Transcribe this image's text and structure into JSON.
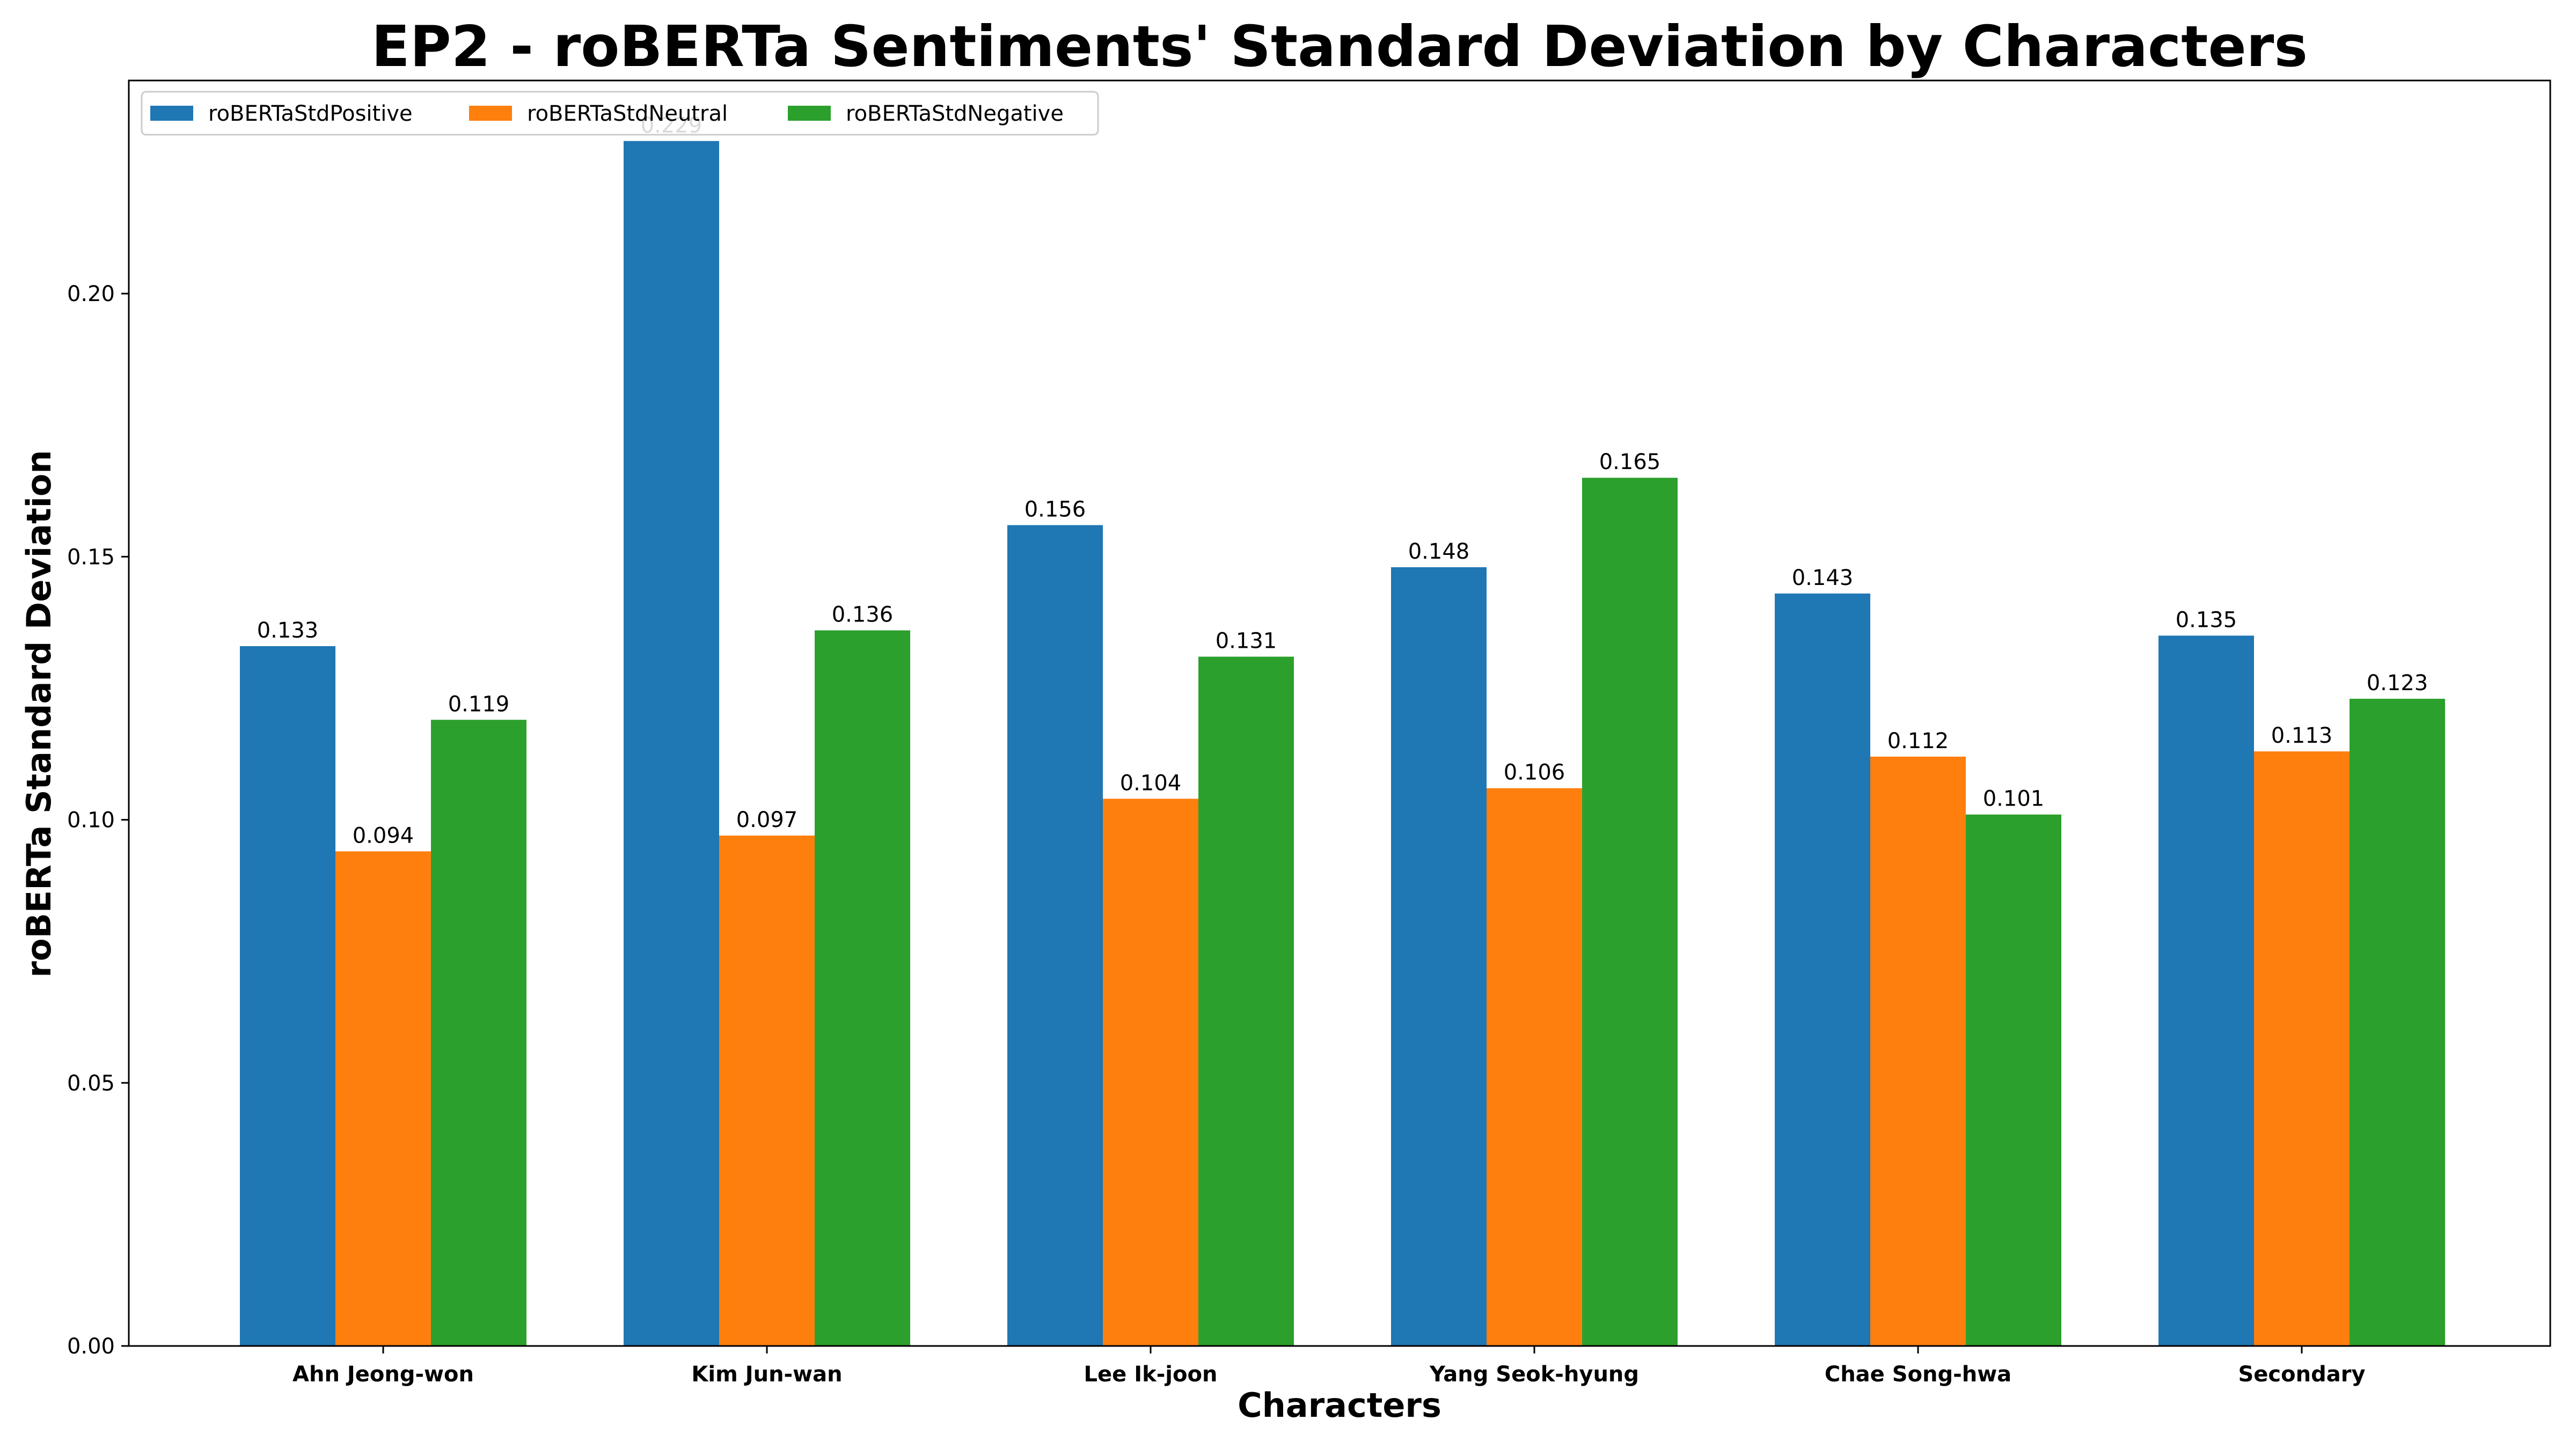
{
  "chart_data": {
    "type": "bar",
    "title": "EP2 - roBERTa Sentiments' Standard Deviation by Characters",
    "xlabel": "Characters",
    "ylabel": "roBERTa Standard Deviation",
    "categories": [
      "Ahn Jeong-won",
      "Kim Jun-wan",
      "Lee Ik-joon",
      "Yang Seok-hyung",
      "Chae Song-hwa",
      "Secondary"
    ],
    "series": [
      {
        "name": "roBERTaStdPositive",
        "color": "#1f77b4",
        "values": [
          0.133,
          0.229,
          0.156,
          0.148,
          0.143,
          0.135
        ],
        "labels": [
          "0.133",
          "0.229",
          "0.156",
          "0.148",
          "0.143",
          "0.135"
        ]
      },
      {
        "name": "roBERTaStdNeutral",
        "color": "#ff7f0e",
        "values": [
          0.094,
          0.097,
          0.104,
          0.106,
          0.112,
          0.113
        ],
        "labels": [
          "0.094",
          "0.097",
          "0.104",
          "0.106",
          "0.112",
          "0.113"
        ]
      },
      {
        "name": "roBERTaStdNegative",
        "color": "#2ca02c",
        "values": [
          0.119,
          0.136,
          0.131,
          0.165,
          0.101,
          0.123
        ],
        "labels": [
          "0.119",
          "0.136",
          "0.131",
          "0.165",
          "0.101",
          "0.123"
        ]
      }
    ],
    "ylim": [
      0,
      0.2405
    ],
    "yticks": [
      0.0,
      0.05,
      0.1,
      0.15,
      0.2
    ],
    "ytick_labels": [
      "0.00",
      "0.05",
      "0.10",
      "0.15",
      "0.20"
    ],
    "grid": false,
    "legend_position": "top-left"
  }
}
